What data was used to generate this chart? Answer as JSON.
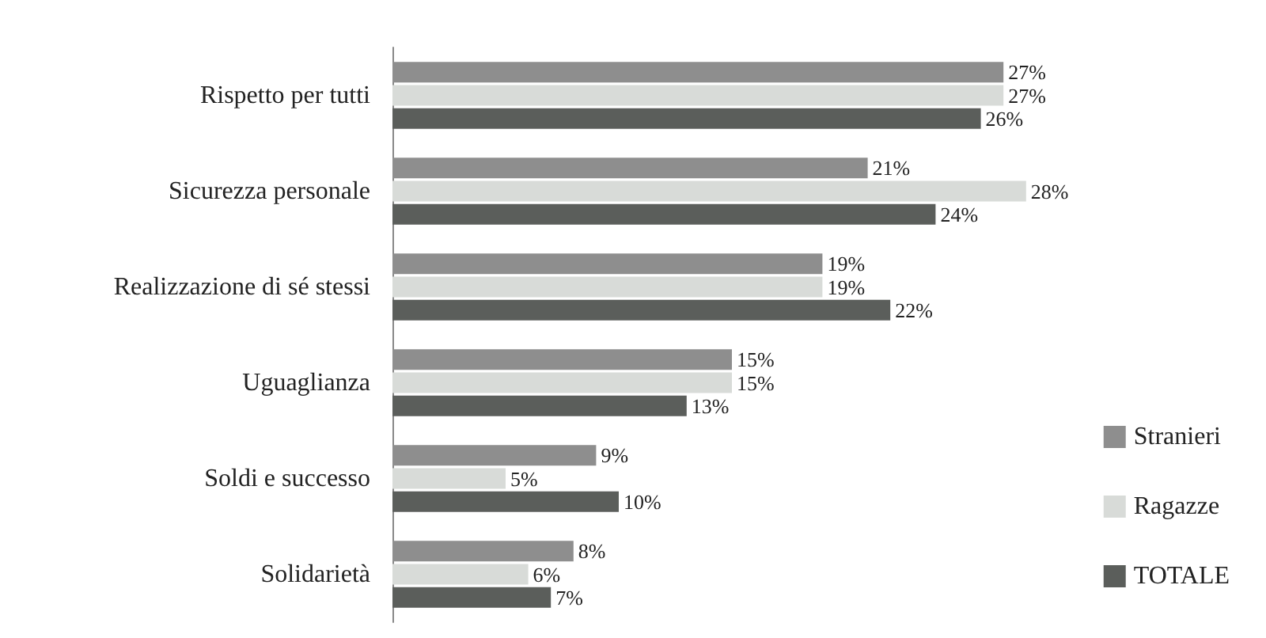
{
  "chart_data": {
    "type": "bar",
    "orientation": "horizontal",
    "categories": [
      "Rispetto per tutti",
      "Sicurezza personale",
      "Realizzazione di sé stessi",
      "Uguaglianza",
      "Soldi e successo",
      "Solidarietà"
    ],
    "series": [
      {
        "name": "Stranieri",
        "color": "#8e8e8e",
        "values": [
          27,
          21,
          19,
          15,
          9,
          8
        ],
        "value_labels": [
          "27%",
          "21%",
          "19%",
          "15%",
          "9%",
          "8%"
        ]
      },
      {
        "name": "Ragazze",
        "color": "#d8dbd8",
        "values": [
          27,
          28,
          19,
          15,
          5,
          6
        ],
        "value_labels": [
          "27%",
          "28%",
          "19%",
          "15%",
          "5%",
          "6%"
        ]
      },
      {
        "name": "TOTALE",
        "color": "#5b5e5b",
        "values": [
          26,
          24,
          22,
          13,
          10,
          7
        ],
        "value_labels": [
          "26%",
          "24%",
          "22%",
          "13%",
          "10%",
          "7%"
        ]
      }
    ],
    "legend": "right"
  }
}
